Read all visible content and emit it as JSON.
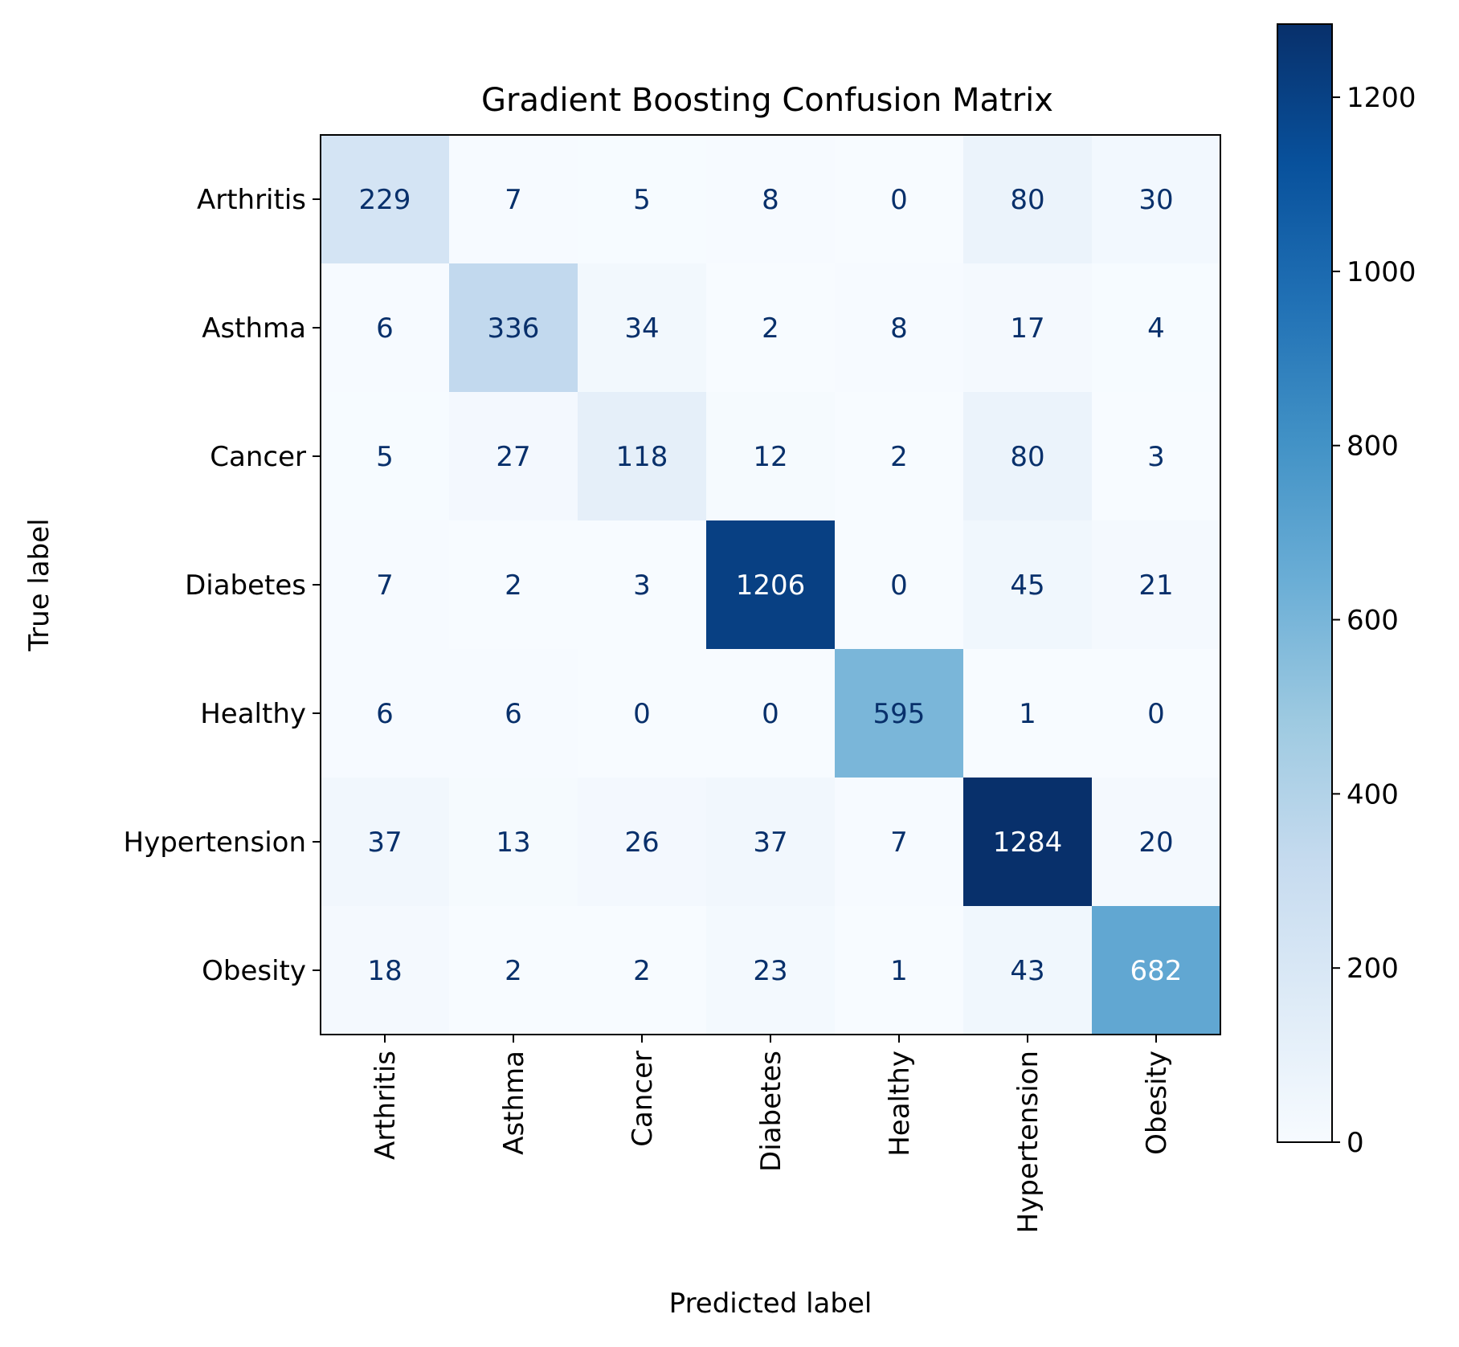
{
  "chart_data": {
    "type": "heatmap",
    "title": "Gradient Boosting Confusion Matrix",
    "xlabel": "Predicted label",
    "ylabel": "True label",
    "x_categories": [
      "Arthritis",
      "Asthma",
      "Cancer",
      "Diabetes",
      "Healthy",
      "Hypertension",
      "Obesity"
    ],
    "y_categories": [
      "Arthritis",
      "Asthma",
      "Cancer",
      "Diabetes",
      "Healthy",
      "Hypertension",
      "Obesity"
    ],
    "matrix": [
      [
        229,
        7,
        5,
        8,
        0,
        80,
        30
      ],
      [
        6,
        336,
        34,
        2,
        8,
        17,
        4
      ],
      [
        5,
        27,
        118,
        12,
        2,
        80,
        3
      ],
      [
        7,
        2,
        3,
        1206,
        0,
        45,
        21
      ],
      [
        6,
        6,
        0,
        0,
        595,
        1,
        0
      ],
      [
        37,
        13,
        26,
        37,
        7,
        1284,
        20
      ],
      [
        18,
        2,
        2,
        23,
        1,
        43,
        682
      ]
    ],
    "colormap": "Blues",
    "value_range": [
      0,
      1284
    ],
    "colorbar": {
      "ticks": [
        0,
        200,
        400,
        600,
        800,
        1000,
        1200
      ],
      "tick_labels": [
        "0",
        "200",
        "400",
        "600",
        "800",
        "1000",
        "1200"
      ]
    },
    "grid": false,
    "text_colors": {
      "dark": "#08306b",
      "light": "#ffffff"
    }
  }
}
